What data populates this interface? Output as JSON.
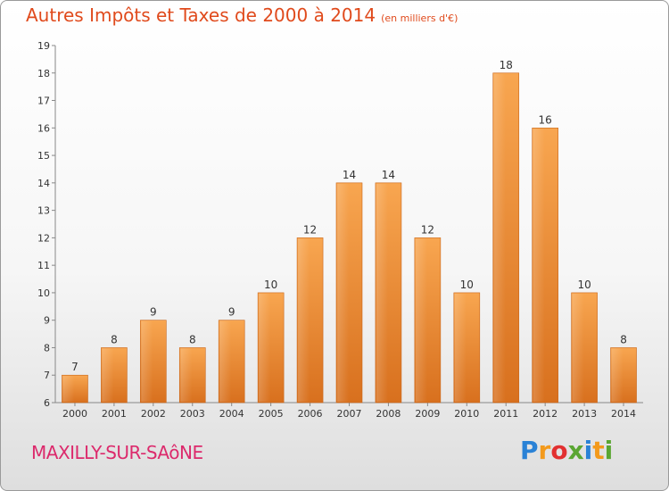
{
  "chart_data": {
    "type": "bar",
    "title": "Autres Impôts et Taxes de 2000 à 2014",
    "subtitle": "(en milliers d'€)",
    "categories": [
      "2000",
      "2001",
      "2002",
      "2003",
      "2004",
      "2005",
      "2006",
      "2007",
      "2008",
      "2009",
      "2010",
      "2011",
      "2012",
      "2013",
      "2014"
    ],
    "values": [
      7,
      8,
      9,
      8,
      9,
      10,
      12,
      14,
      14,
      12,
      10,
      18,
      16,
      10,
      8
    ],
    "ylim": [
      6,
      19
    ],
    "yticks": [
      6,
      7,
      8,
      9,
      10,
      11,
      12,
      13,
      14,
      15,
      16,
      17,
      18,
      19
    ],
    "grid": false,
    "bar_color": "#f59a44",
    "bar_color_dark": "#d8701e"
  },
  "commune": "MAXILLY-SUR-SAôNE",
  "logo": {
    "letters": [
      "P",
      "r",
      "o",
      "x",
      "i",
      "t",
      "i"
    ],
    "colors": [
      "#2a82d6",
      "#f39a1c",
      "#e23030",
      "#5aa632",
      "#2a82d6",
      "#f39a1c",
      "#5aa632"
    ]
  }
}
